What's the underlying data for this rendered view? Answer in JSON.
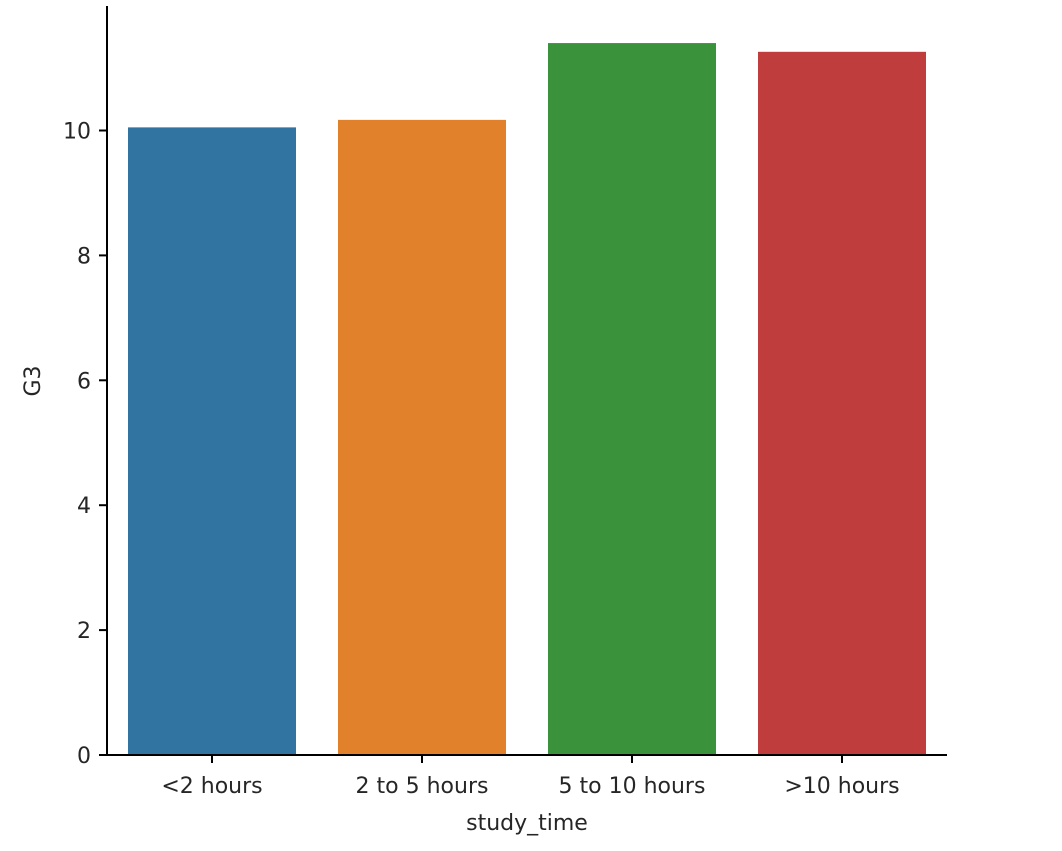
{
  "chart_data": {
    "type": "bar",
    "title": "",
    "xlabel": "study_time",
    "ylabel": "G3",
    "categories": [
      "<2 hours",
      "2 to 5 hours",
      "5 to 10 hours",
      ">10 hours"
    ],
    "values": [
      10.05,
      10.17,
      11.4,
      11.26
    ],
    "colors": [
      "#3274a1",
      "#e1812c",
      "#3a923a",
      "#c03d3e"
    ],
    "ylim": [
      0,
      12
    ],
    "yticks": [
      0,
      2,
      4,
      6,
      8,
      10
    ],
    "grid": false,
    "legend": "none"
  }
}
